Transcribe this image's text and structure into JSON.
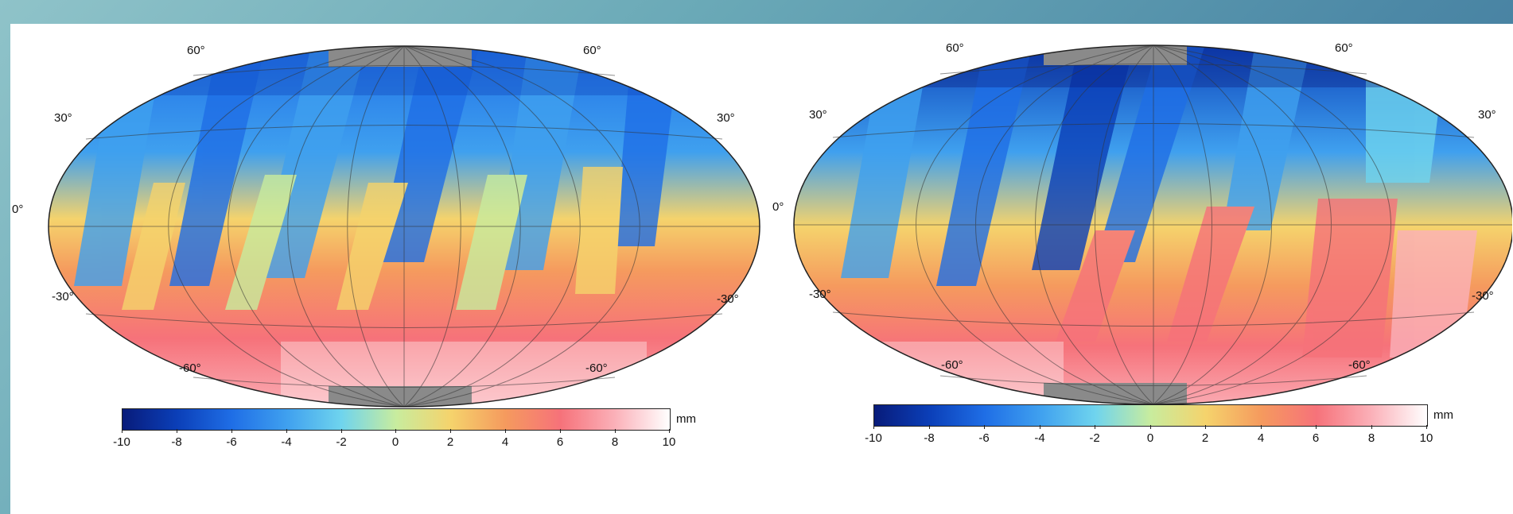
{
  "maps": [
    {
      "id": "left",
      "lat_labels": {
        "n60": "60°",
        "n30": "30°",
        "eq": "0°",
        "s30": "-30°",
        "s60": "-60°"
      },
      "colorbar": {
        "unit": "mm",
        "min": -10,
        "max": 10,
        "ticks": [
          "-10",
          "-8",
          "-6",
          "-4",
          "-2",
          "0",
          "2",
          "4",
          "6",
          "8",
          "10"
        ]
      }
    },
    {
      "id": "right",
      "lat_labels": {
        "n60": "60°",
        "n30": "30°",
        "eq": "0°",
        "s30": "-30°",
        "s60": "-60°"
      },
      "colorbar": {
        "unit": "mm",
        "min": -10,
        "max": 10,
        "ticks": [
          "-10",
          "-8",
          "-6",
          "-4",
          "-2",
          "0",
          "2",
          "4",
          "6",
          "8",
          "10"
        ]
      }
    }
  ],
  "colors": {
    "scale": [
      "#081b7a",
      "#0b3fb8",
      "#1f6ee6",
      "#3fa0ef",
      "#6fd4ee",
      "#c8ec9e",
      "#f5d36c",
      "#f59a5e",
      "#f6727a",
      "#fbb1b9",
      "#ffffff"
    ],
    "no_data": "#8a8a8a"
  }
}
